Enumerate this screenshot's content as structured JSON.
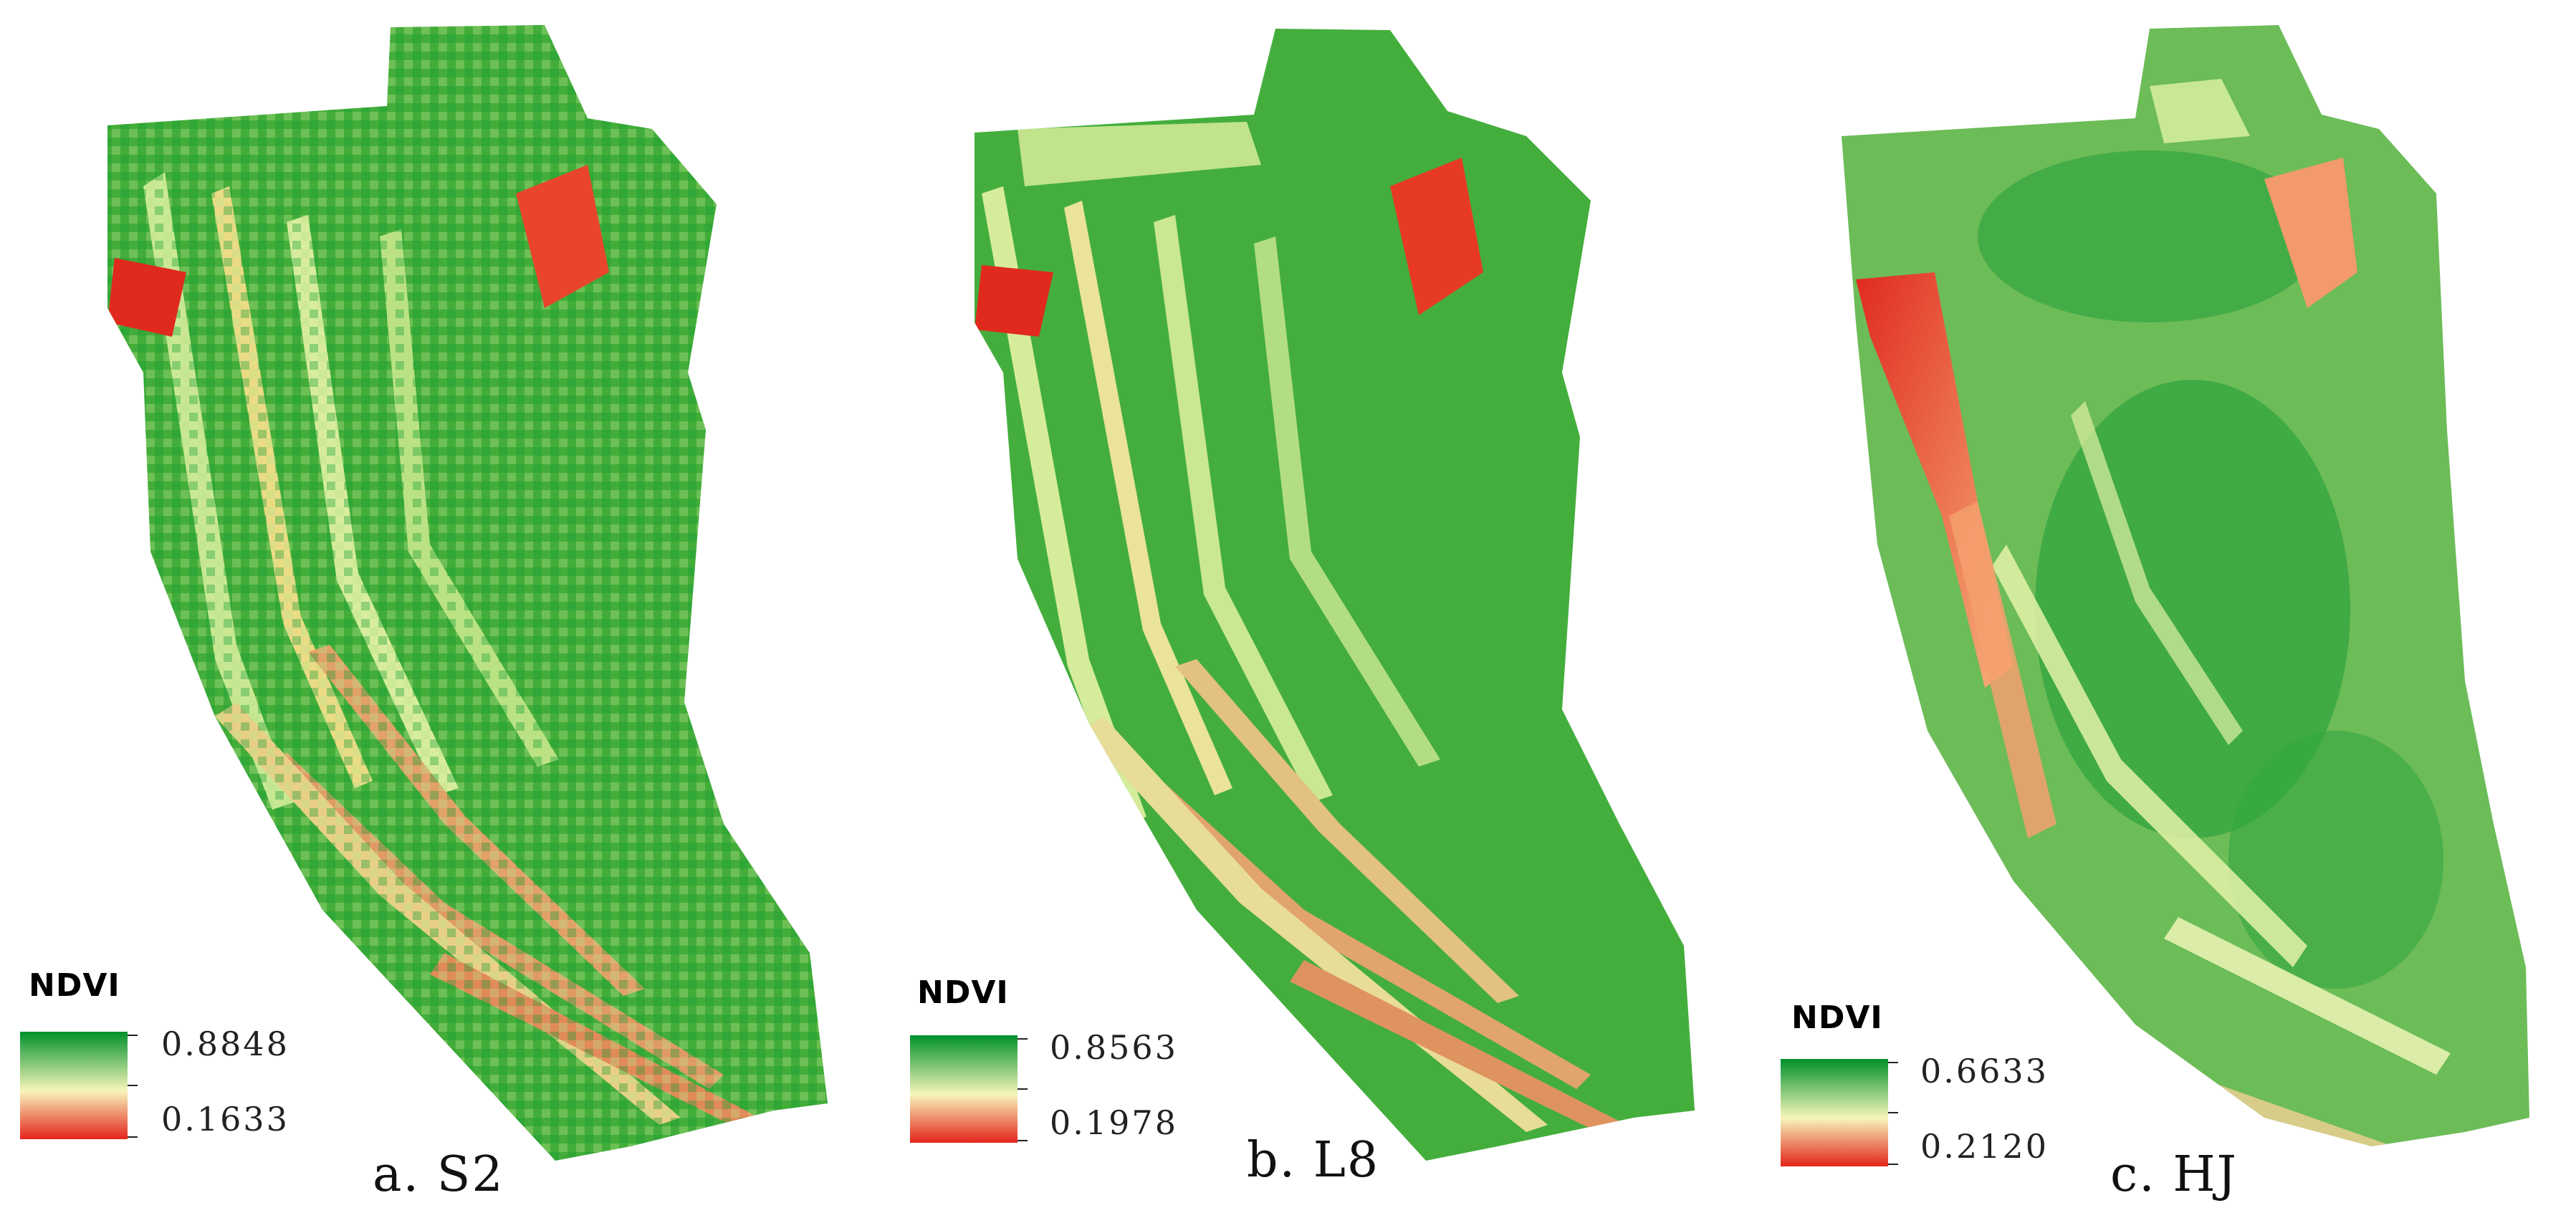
{
  "colors": {
    "high": "#00912b",
    "mid": "#f7f5bb",
    "low": "#e3241b"
  },
  "panels": [
    {
      "legend_title": "NDVI",
      "max": "0.8848",
      "min": "0.1633",
      "caption": "a. S2",
      "pattern": "pixelated-s2"
    },
    {
      "legend_title": "NDVI",
      "max": "0.8563",
      "min": "0.1978",
      "caption": "b. L8",
      "pattern": "pixelated-l8"
    },
    {
      "legend_title": "NDVI",
      "max": "0.6633",
      "min": "0.2120",
      "caption": "c. HJ",
      "pattern": "smooth-hj"
    }
  ]
}
